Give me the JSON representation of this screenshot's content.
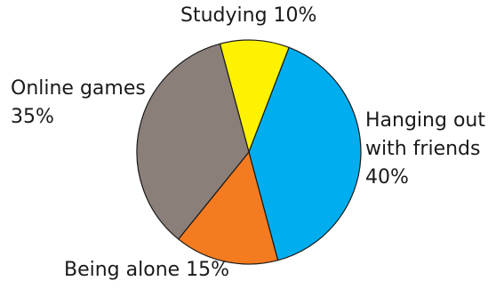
{
  "chart_data": {
    "type": "pie",
    "title": "",
    "slices": [
      {
        "label": "Studying",
        "value": 10,
        "color": "#fff200"
      },
      {
        "label": "Hanging out with friends",
        "value": 40,
        "color": "#00aeef"
      },
      {
        "label": "Being alone",
        "value": 15,
        "color": "#f47b20"
      },
      {
        "label": "Online games",
        "value": 35,
        "color": "#8b7f79"
      }
    ],
    "labels": {
      "studying": {
        "line1": "Studying 10%"
      },
      "hanging_out": {
        "line1": "Hanging out",
        "line2": "with friends",
        "line3": "40%"
      },
      "being_alone": {
        "line1": "Being alone 15%"
      },
      "online_games": {
        "line1": "Online games",
        "line2": "35%"
      }
    }
  }
}
